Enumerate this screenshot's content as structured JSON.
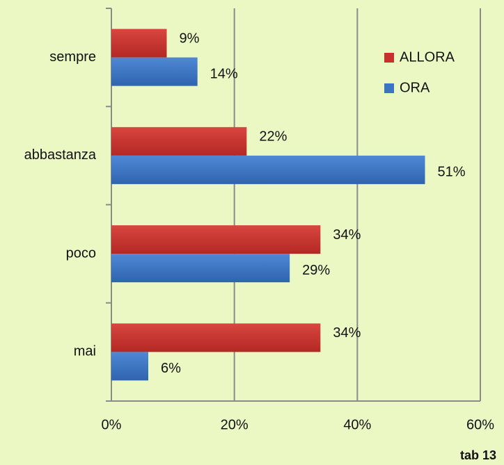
{
  "chart_data": {
    "type": "bar",
    "orientation": "horizontal",
    "categories": [
      "sempre",
      "abbastanza",
      "poco",
      "mai"
    ],
    "series": [
      {
        "name": "ALLORA",
        "color": "#c7302c",
        "values": [
          9,
          22,
          34,
          34
        ],
        "value_labels": [
          "9%",
          "22%",
          "34%",
          "34%"
        ]
      },
      {
        "name": "ORA",
        "color": "#3b74c2",
        "values": [
          14,
          51,
          29,
          6
        ],
        "value_labels": [
          "14%",
          "51%",
          "29%",
          "6%"
        ]
      }
    ],
    "xlim": [
      0,
      60
    ],
    "xticks": [
      {
        "value": 0,
        "label": "0%"
      },
      {
        "value": 20,
        "label": "20%"
      },
      {
        "value": 40,
        "label": "40%"
      },
      {
        "value": 60,
        "label": "60%"
      }
    ],
    "grid": true,
    "legend": "upper right",
    "note": "tab 13"
  }
}
